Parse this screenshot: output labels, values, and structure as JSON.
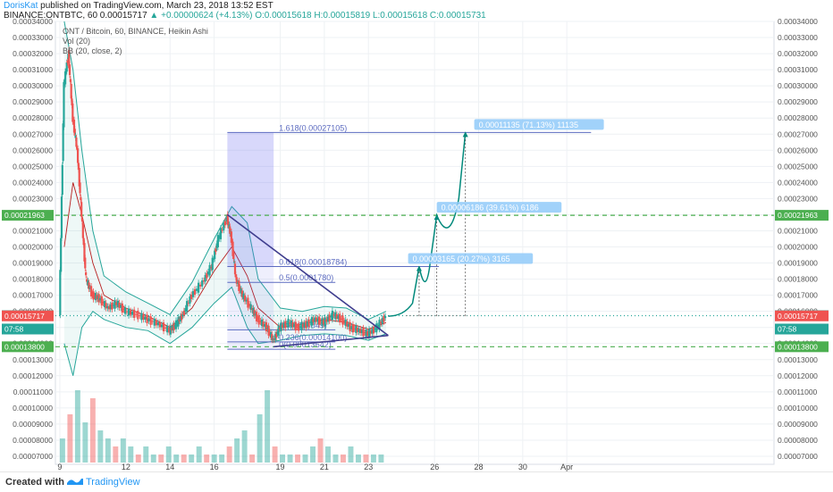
{
  "header": {
    "author": "DorisKat",
    "published": "published on TradingView.com, March 23, 2018 13:52 EST",
    "symbol_line": "BINANCE:ONTBTC, 60  0.00015717",
    "change": "▲ +0.00000624 (+4.13%)",
    "ohlc": "O:0.00015618  H:0.00015819  L:0.00015618  C:0.00015731"
  },
  "legend": {
    "title": "ONT / Bitcoin, 60, BINANCE, Heikin Ashi",
    "vol": "Vol (20)",
    "bb": "BB (20, close, 2)"
  },
  "footer": {
    "created_with": "Created with",
    "brand": "TradingView"
  },
  "chart_data": {
    "type": "candlestick",
    "title": "ONT / Bitcoin, 60, BINANCE, Heikin Ashi",
    "y_axis": {
      "min": 6.5e-05,
      "max": 0.00034,
      "ticks": [
        "0.00034000",
        "0.00033000",
        "0.00032000",
        "0.00031000",
        "0.00030000",
        "0.00029000",
        "0.00028000",
        "0.00027000",
        "0.00026000",
        "0.00025000",
        "0.00024000",
        "0.00023000",
        "0.00022000",
        "0.00021000",
        "0.00020000",
        "0.00019000",
        "0.00018000",
        "0.00017000",
        "0.00016000",
        "0.00015000",
        "0.00014000",
        "0.00013000",
        "0.00012000",
        "0.00011000",
        "0.00010000",
        "0.00009000",
        "0.00008000",
        "0.00007000"
      ]
    },
    "x_axis": {
      "min": 8.8,
      "max": 41.4,
      "ticks": [
        {
          "day": 9,
          "label": "9"
        },
        {
          "day": 12,
          "label": "12"
        },
        {
          "day": 14,
          "label": "14"
        },
        {
          "day": 16,
          "label": "16"
        },
        {
          "day": 19,
          "label": "19"
        },
        {
          "day": 21,
          "label": "21"
        },
        {
          "day": 23,
          "label": "23"
        },
        {
          "day": 26,
          "label": "26"
        },
        {
          "day": 28,
          "label": "28"
        },
        {
          "day": 30,
          "label": "30"
        },
        {
          "day": 32,
          "label": "Apr"
        }
      ]
    },
    "price_path": [
      [
        9.0,
        0.00016
      ],
      [
        9.2,
        0.0003
      ],
      [
        9.4,
        0.00032
      ],
      [
        9.6,
        0.00028
      ],
      [
        9.8,
        0.00026
      ],
      [
        10.0,
        0.00022
      ],
      [
        10.2,
        0.00018
      ],
      [
        10.5,
        0.00017
      ],
      [
        10.8,
        0.000168
      ],
      [
        11.2,
        0.000162
      ],
      [
        11.6,
        0.000165
      ],
      [
        12.0,
        0.00016
      ],
      [
        12.5,
        0.000158
      ],
      [
        13.0,
        0.000155
      ],
      [
        13.5,
        0.000152
      ],
      [
        14.0,
        0.000148
      ],
      [
        14.3,
        0.000152
      ],
      [
        14.6,
        0.000158
      ],
      [
        15.0,
        0.00017
      ],
      [
        15.5,
        0.000178
      ],
      [
        15.9,
        0.000188
      ],
      [
        16.2,
        0.000205
      ],
      [
        16.6,
        0.000218
      ],
      [
        16.8,
        0.000205
      ],
      [
        17.0,
        0.00018
      ],
      [
        17.3,
        0.00017
      ],
      [
        17.7,
        0.000162
      ],
      [
        18.0,
        0.000155
      ],
      [
        18.4,
        0.00015
      ],
      [
        18.7,
        0.000142
      ],
      [
        19.0,
        0.00015
      ],
      [
        19.4,
        0.000153
      ],
      [
        19.8,
        0.00015
      ],
      [
        20.2,
        0.000152
      ],
      [
        20.6,
        0.000155
      ],
      [
        21.0,
        0.000153
      ],
      [
        21.4,
        0.000158
      ],
      [
        21.8,
        0.000155
      ],
      [
        22.2,
        0.00015
      ],
      [
        22.6,
        0.000148
      ],
      [
        23.0,
        0.000146
      ],
      [
        23.4,
        0.00015
      ],
      [
        23.8,
        0.000157
      ]
    ],
    "bollinger": {
      "upper": [
        [
          9.2,
          0.00034
        ],
        [
          9.6,
          0.00031
        ],
        [
          10.0,
          0.00026
        ],
        [
          10.5,
          0.00021
        ],
        [
          11.0,
          0.000182
        ],
        [
          12.0,
          0.000172
        ],
        [
          13.0,
          0.000165
        ],
        [
          14.0,
          0.000158
        ],
        [
          15.0,
          0.000178
        ],
        [
          16.0,
          0.000205
        ],
        [
          16.8,
          0.000225
        ],
        [
          17.5,
          0.000215
        ],
        [
          18.0,
          0.00018
        ],
        [
          19.0,
          0.000162
        ],
        [
          20.0,
          0.00016
        ],
        [
          21.0,
          0.000163
        ],
        [
          22.0,
          0.000162
        ],
        [
          23.0,
          0.000155
        ],
        [
          23.8,
          0.00016
        ]
      ],
      "basis": [
        [
          9.2,
          0.0002
        ],
        [
          9.6,
          0.00024
        ],
        [
          10.0,
          0.00022
        ],
        [
          10.5,
          0.00019
        ],
        [
          11.0,
          0.00017
        ],
        [
          12.0,
          0.000162
        ],
        [
          13.0,
          0.000157
        ],
        [
          14.0,
          0.00015
        ],
        [
          15.0,
          0.000162
        ],
        [
          16.0,
          0.000185
        ],
        [
          16.8,
          0.0002
        ],
        [
          17.5,
          0.000182
        ],
        [
          18.0,
          0.000162
        ],
        [
          19.0,
          0.00015
        ],
        [
          20.0,
          0.000152
        ],
        [
          21.0,
          0.000155
        ],
        [
          22.0,
          0.000153
        ],
        [
          23.0,
          0.000149
        ],
        [
          23.8,
          0.000153
        ]
      ],
      "lower": [
        [
          9.2,
          0.00014
        ],
        [
          9.6,
          0.00012
        ],
        [
          10.0,
          0.00015
        ],
        [
          10.5,
          0.00016
        ],
        [
          11.0,
          0.000155
        ],
        [
          12.0,
          0.00015
        ],
        [
          13.0,
          0.000148
        ],
        [
          14.0,
          0.00014
        ],
        [
          15.0,
          0.00015
        ],
        [
          16.0,
          0.000165
        ],
        [
          16.8,
          0.000175
        ],
        [
          17.5,
          0.00015
        ],
        [
          18.0,
          0.00014
        ],
        [
          19.0,
          0.000142
        ],
        [
          20.0,
          0.000145
        ],
        [
          21.0,
          0.000146
        ],
        [
          22.0,
          0.000145
        ],
        [
          23.0,
          0.000142
        ],
        [
          23.8,
          0.000146
        ]
      ]
    },
    "horizontal_lines": [
      {
        "price": 0.00021963,
        "label": "0.00021963",
        "style": "dashed",
        "color": "#4caf50"
      },
      {
        "price": 0.000138,
        "label": "0.00013800",
        "style": "dashed",
        "color": "#4caf50"
      },
      {
        "price": 0.00015731,
        "label": "0.00015731",
        "style": "dotted",
        "color": "#26a69a"
      }
    ],
    "axis_badges": [
      {
        "price": 0.00021963,
        "label": "0.00021963",
        "color": "#4caf50"
      },
      {
        "price": 0.000138,
        "label": "0.00013800",
        "color": "#4caf50"
      },
      {
        "price": 0.00015731,
        "label": "0.00015731",
        "color": "#26a69a"
      },
      {
        "price": 0.000149,
        "label": "07:58",
        "color": "#26a69a"
      },
      {
        "price": 0.00015717,
        "label": "0.00015717",
        "color": "#ef5350"
      }
    ],
    "fibonacci": {
      "x_start": 16.6,
      "x_end": 18.7,
      "levels": [
        {
          "price": 0.00027105,
          "label": "1.618(0.00027105)"
        },
        {
          "price": 0.00018784,
          "label": "0.618(0.00018784)"
        },
        {
          "price": 0.000178,
          "label": "0.5(0.0001780)"
        },
        {
          "price": 0.00014849,
          "label": "(0.00014849)"
        },
        {
          "price": 0.000141,
          "label": "0.236(0.00014100)"
        },
        {
          "price": 0.00013642,
          "label": "0(0.00013642)"
        }
      ]
    },
    "triangle": {
      "upper": [
        [
          16.6,
          0.00022
        ],
        [
          23.9,
          0.000145
        ]
      ],
      "lower": [
        [
          18.7,
          0.000138
        ],
        [
          23.9,
          0.000145
        ]
      ]
    },
    "targets": [
      {
        "label": "0.00003165 (20.27%) 3165",
        "price": 0.00018784,
        "x_label": 24.8
      },
      {
        "label": "0.00006186 (39.61%) 6186",
        "price": 0.00021963,
        "x_label": 26.1
      },
      {
        "label": "0.00011135 (71.13%) 11135",
        "price": 0.00027105,
        "x_label": 27.8
      }
    ],
    "volume": [
      3,
      6,
      9,
      5,
      8,
      4,
      3,
      2,
      3,
      2,
      1,
      2,
      1,
      1,
      2,
      1,
      1,
      1,
      2,
      1,
      1,
      1,
      2,
      3,
      4,
      1,
      6,
      9,
      2,
      1,
      1,
      1,
      1,
      2,
      3,
      2,
      1,
      1,
      2,
      1,
      1,
      1,
      1
    ]
  }
}
